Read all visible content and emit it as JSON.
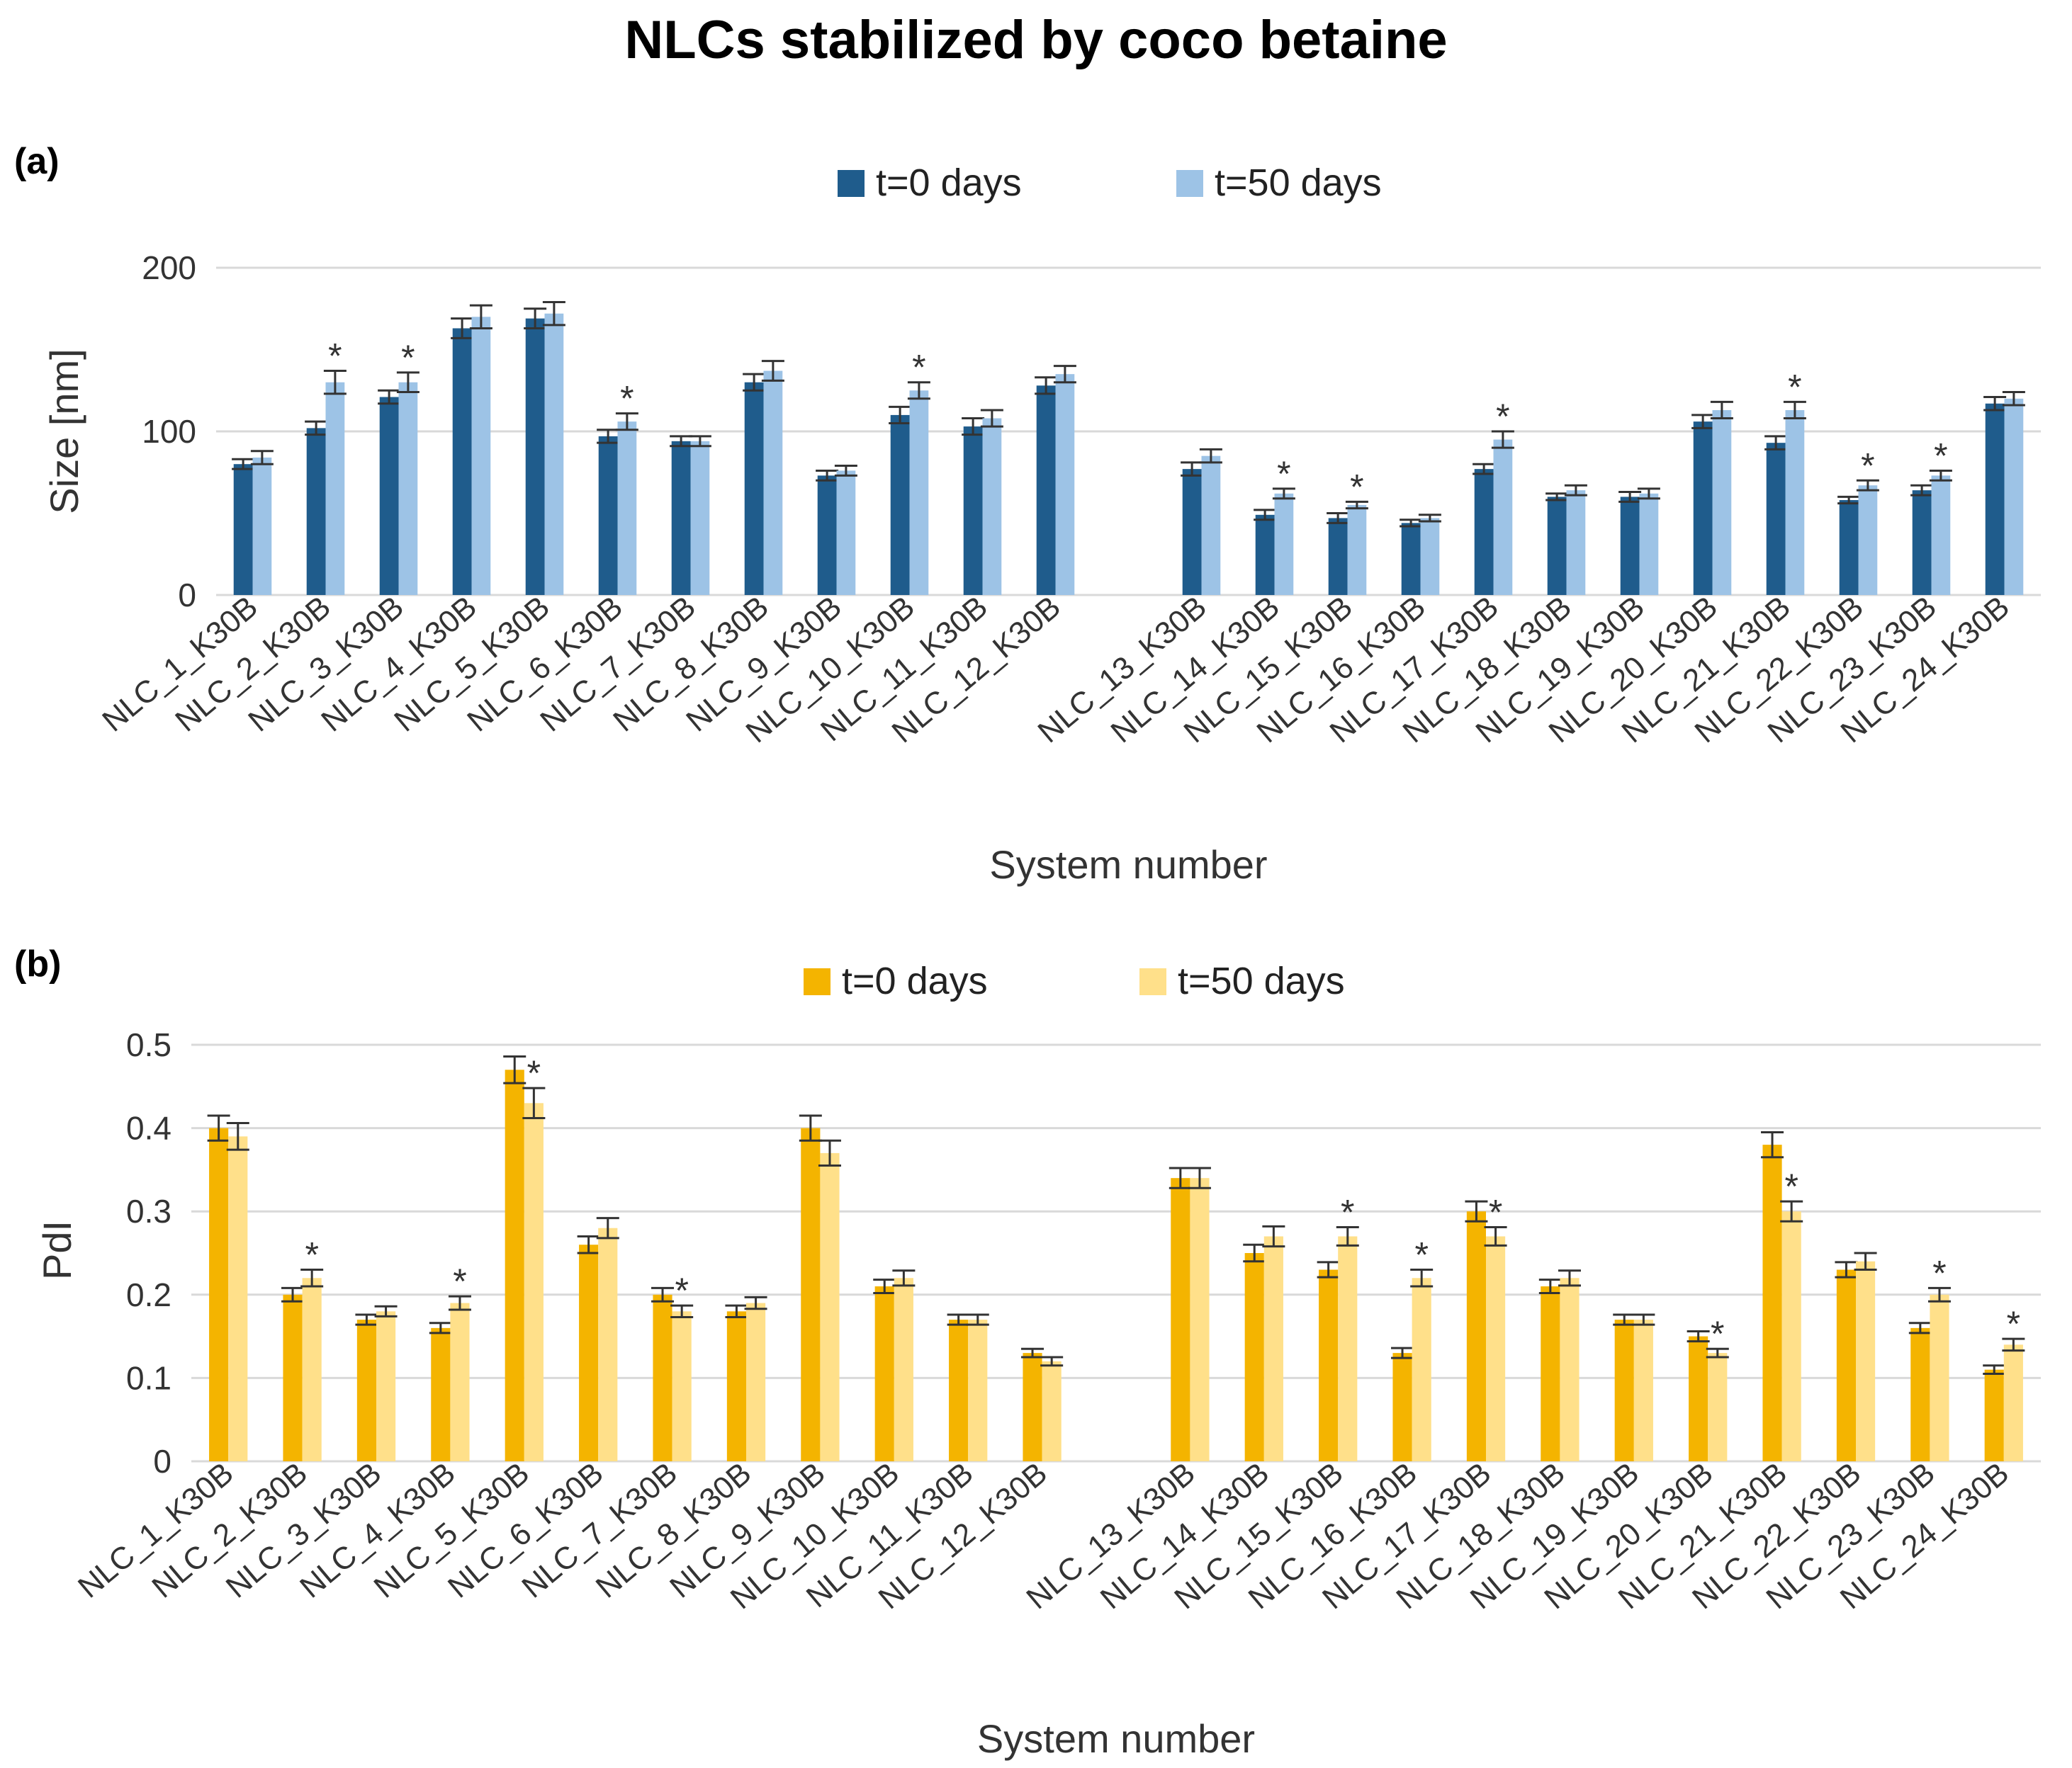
{
  "figure_title": "NLCs stabilized by coco betaine",
  "chart_data": [
    {
      "type": "bar",
      "panel": "(a)",
      "xlabel": "System number",
      "ylabel": "Size  [nm]",
      "ylim": [
        0,
        200
      ],
      "yticks": [
        "0",
        "100",
        "200"
      ],
      "grid": true,
      "legend_position": "top-center",
      "categories": [
        "NLC_1_K30B",
        "NLC_2_K30B",
        "NLC_3_K30B",
        "NLC_4_K30B",
        "NLC_5_K30B",
        "NLC_6_K30B",
        "NLC_7_K30B",
        "NLC_8_K30B",
        "NLC_9_K30B",
        "NLC_10_K30B",
        "NLC_11_K30B",
        "NLC_12_K30B",
        "NLC_13_K30B",
        "NLC_14_K30B",
        "NLC_15_K30B",
        "NLC_16_K30B",
        "NLC_17_K30B",
        "NLC_18_K30B",
        "NLC_19_K30B",
        "NLC_20_K30B",
        "NLC_21_K30B",
        "NLC_22_K30B",
        "NLC_23_K30B",
        "NLC_24_K30B"
      ],
      "series": [
        {
          "name": "t=0 days",
          "color": "#1f5c8c",
          "values": [
            80,
            102,
            121,
            163,
            169,
            97,
            94,
            130,
            73,
            110,
            103,
            128,
            77,
            49,
            47,
            44,
            77,
            60,
            60,
            106,
            93,
            58,
            64,
            117
          ],
          "errors": [
            3,
            4,
            4,
            6,
            6,
            4,
            3,
            5,
            3,
            5,
            5,
            5,
            4,
            3,
            3,
            2,
            3,
            2,
            3,
            4,
            4,
            2,
            3,
            4
          ]
        },
        {
          "name": "t=50 days",
          "color": "#9dc3e6",
          "values": [
            84,
            130,
            130,
            170,
            172,
            106,
            94,
            137,
            76,
            125,
            108,
            135,
            85,
            62,
            55,
            47,
            95,
            64,
            62,
            113,
            113,
            67,
            73,
            120
          ],
          "errors": [
            4,
            7,
            6,
            7,
            7,
            5,
            3,
            6,
            3,
            5,
            5,
            5,
            4,
            3,
            2,
            2,
            5,
            3,
            3,
            5,
            5,
            3,
            3,
            4
          ]
        }
      ],
      "significant": [
        2,
        3,
        6,
        10,
        14,
        15,
        17,
        21,
        22,
        23
      ],
      "significance_marker": "*"
    },
    {
      "type": "bar",
      "panel": "(b)",
      "xlabel": "System number",
      "ylabel": "PdI",
      "ylim": [
        0,
        0.5
      ],
      "yticks": [
        "0",
        "0.1",
        "0.2",
        "0.3",
        "0.4",
        "0.5"
      ],
      "grid": true,
      "legend_position": "top-center",
      "categories": [
        "NLC_1_K30B",
        "NLC_2_K30B",
        "NLC_3_K30B",
        "NLC_4_K30B",
        "NLC_5_K30B",
        "NLC_6_K30B",
        "NLC_7_K30B",
        "NLC_8_K30B",
        "NLC_9_K30B",
        "NLC_10_K30B",
        "NLC_11_K30B",
        "NLC_12_K30B",
        "NLC_13_K30B",
        "NLC_14_K30B",
        "NLC_15_K30B",
        "NLC_16_K30B",
        "NLC_17_K30B",
        "NLC_18_K30B",
        "NLC_19_K30B",
        "NLC_20_K30B",
        "NLC_21_K30B",
        "NLC_22_K30B",
        "NLC_23_K30B",
        "NLC_24_K30B"
      ],
      "series": [
        {
          "name": "t=0 days",
          "color": "#f4b400",
          "values": [
            0.4,
            0.2,
            0.17,
            0.16,
            0.47,
            0.26,
            0.2,
            0.18,
            0.4,
            0.21,
            0.17,
            0.13,
            0.34,
            0.25,
            0.23,
            0.13,
            0.3,
            0.21,
            0.17,
            0.15,
            0.38,
            0.23,
            0.16,
            0.11
          ],
          "errors": [
            0.015,
            0.008,
            0.006,
            0.006,
            0.016,
            0.01,
            0.008,
            0.007,
            0.015,
            0.008,
            0.006,
            0.005,
            0.012,
            0.01,
            0.009,
            0.006,
            0.012,
            0.008,
            0.006,
            0.006,
            0.015,
            0.009,
            0.006,
            0.005
          ]
        },
        {
          "name": "t=50 days",
          "color": "#ffe08a",
          "values": [
            0.39,
            0.22,
            0.18,
            0.19,
            0.43,
            0.28,
            0.18,
            0.19,
            0.37,
            0.22,
            0.17,
            0.12,
            0.34,
            0.27,
            0.27,
            0.22,
            0.27,
            0.22,
            0.17,
            0.13,
            0.3,
            0.24,
            0.2,
            0.14
          ],
          "errors": [
            0.016,
            0.01,
            0.006,
            0.008,
            0.018,
            0.012,
            0.007,
            0.007,
            0.015,
            0.009,
            0.006,
            0.005,
            0.012,
            0.012,
            0.011,
            0.01,
            0.011,
            0.009,
            0.006,
            0.005,
            0.012,
            0.01,
            0.008,
            0.007
          ]
        }
      ],
      "significant": [
        2,
        4,
        5,
        7,
        15,
        16,
        17,
        20,
        21,
        23,
        24
      ],
      "significance_marker": "*"
    }
  ]
}
